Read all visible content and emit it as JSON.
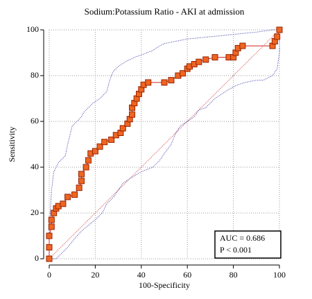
{
  "chart_data": {
    "type": "roc",
    "title": "Sodium:Potassium Ratio - AKI at admission",
    "x_label": "100-Specificity",
    "y_label": "Sensitivity",
    "xlim": [
      0,
      100
    ],
    "ylim": [
      0,
      100
    ],
    "xticks": [
      0,
      20,
      40,
      60,
      80,
      100
    ],
    "yticks": [
      0,
      20,
      40,
      60,
      80,
      100
    ],
    "grid": true,
    "annotations": [
      "AUC = 0.686",
      "P < 0.001"
    ],
    "series": [
      {
        "color": "#cc3333",
        "style": "dotted",
        "x": [
          0,
          100
        ],
        "values": [
          0,
          100
        ]
      },
      {
        "color": "#3333aa",
        "style": "dotted",
        "x": [
          0,
          0,
          1,
          2,
          4,
          7,
          8,
          9,
          10,
          12,
          14,
          15,
          17,
          19,
          22,
          25,
          26,
          27,
          28,
          30,
          33,
          37,
          40,
          45,
          48,
          50,
          55,
          60,
          70,
          80,
          90,
          97,
          100
        ],
        "values": [
          0,
          12,
          30,
          38,
          42,
          45,
          50,
          54,
          58,
          60,
          62,
          64,
          66,
          68,
          70,
          73,
          77,
          80,
          82,
          84,
          86,
          88,
          89,
          91,
          93,
          94,
          95,
          96,
          97,
          98,
          99,
          100,
          100
        ]
      },
      {
        "color": "#3333aa",
        "style": "dotted",
        "x": [
          0,
          3,
          5,
          8,
          12,
          15,
          20,
          23,
          25,
          28,
          30,
          32,
          35,
          40,
          45,
          48,
          50,
          53,
          55,
          57,
          60,
          63,
          65,
          68,
          70,
          72,
          75,
          78,
          80,
          82,
          85,
          90,
          93,
          97,
          99,
          100,
          100
        ],
        "values": [
          0,
          0,
          2,
          5,
          10,
          13,
          17,
          20,
          24,
          27,
          30,
          33,
          35,
          38,
          40,
          43,
          46,
          50,
          55,
          58,
          60,
          62,
          65,
          66,
          68,
          70,
          72,
          74,
          75,
          76,
          77,
          78,
          78,
          80,
          83,
          90,
          100
        ]
      },
      {
        "color": "#ee6622",
        "style": "solid",
        "marker": "square",
        "x": [
          0,
          0,
          0,
          1,
          1,
          2,
          3,
          4,
          6,
          8,
          11,
          13,
          14,
          14,
          16,
          17,
          18,
          20,
          22,
          24,
          27,
          29,
          31,
          32,
          34,
          35,
          36,
          36,
          37,
          38,
          39,
          40,
          41,
          43,
          50,
          53,
          56,
          58,
          60,
          61,
          63,
          65,
          68,
          72,
          78,
          80,
          81,
          82,
          84,
          97,
          98,
          99,
          100
        ],
        "values": [
          0,
          5,
          10,
          14,
          17,
          20,
          22,
          23,
          24,
          27,
          28,
          31,
          34,
          37,
          40,
          43,
          46,
          47,
          49,
          51,
          52,
          54,
          55,
          57,
          59,
          61,
          63,
          66,
          68,
          70,
          72,
          74,
          76,
          77,
          77,
          78,
          80,
          81,
          83,
          84,
          85,
          86,
          87,
          88,
          88,
          88,
          90,
          92,
          93,
          93,
          95,
          97,
          100
        ]
      }
    ]
  }
}
